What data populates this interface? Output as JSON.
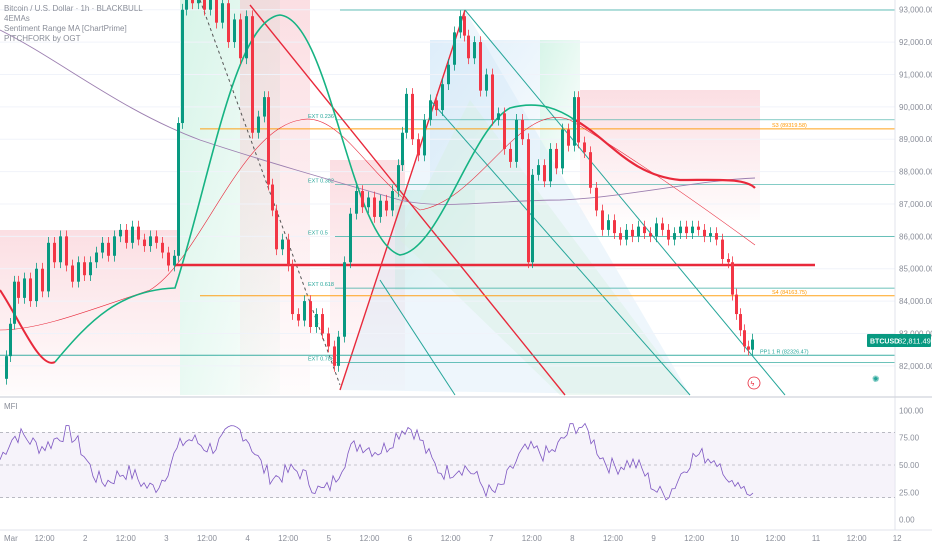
{
  "legend": {
    "line1": "Bitcoin / U.S. Dollar · 1h · BLACKBULL",
    "line2": "4EMAs",
    "line3": "Sentiment Range MA [ChartPrime]",
    "line4": "PITCHFORK by OGT"
  },
  "indicator_label": "MFI",
  "price_badge": {
    "symbol": "BTCUSD",
    "value": "82,811.49",
    "color": "#089981"
  },
  "colors": {
    "up": "#089981",
    "down": "#f23645",
    "orange": "#ff9800",
    "teal": "#26a69a",
    "red_line": "#e8293b",
    "purple": "#9c7fb0"
  },
  "chart_data": [
    {
      "type": "line",
      "chart_kind": "candlestick",
      "y_axis": {
        "ticks": [
          "93,000.00",
          "92,000.00",
          "91,000.00",
          "90,000.00",
          "89,000.00",
          "88,000.00",
          "87,000.00",
          "86,000.00",
          "85,000.00",
          "84,000.00",
          "83,000.00",
          "82,000.00"
        ],
        "values": [
          93000,
          92000,
          91000,
          90000,
          89000,
          88000,
          87000,
          86000,
          85000,
          84000,
          83000,
          82000
        ],
        "ylim": [
          81100,
          93300
        ]
      },
      "x_axis": {
        "ticks": [
          "Mar",
          "12:00",
          "2",
          "12:00",
          "3",
          "12:00",
          "4",
          "12:00",
          "5",
          "12:00",
          "6",
          "12:00",
          "7",
          "12:00",
          "8",
          "12:00",
          "9",
          "12:00",
          "10",
          "12:00",
          "11",
          "12:00",
          "12"
        ]
      },
      "levels": [
        {
          "label": "EXT 0.236",
          "value": 89600
        },
        {
          "label": "EXT 0.382",
          "value": 87600
        },
        {
          "label": "EXT 0.5",
          "value": 86000
        },
        {
          "label": "EXT 0.618",
          "value": 84400
        },
        {
          "label": "EXT 0.786",
          "value": 82100
        },
        {
          "label": "S3 (89319.58)",
          "value": 89320
        },
        {
          "label": "S4 (84163.75)",
          "value": 84164
        },
        {
          "label": "PP1 1 R (82326.47)",
          "value": 82326
        }
      ],
      "red_support": 85100,
      "last_price": 82811.49
    },
    {
      "type": "line",
      "chart_kind": "oscillator",
      "y_axis": {
        "ticks": [
          "100.00",
          "75.00",
          "50.00",
          "25.00",
          "0.00"
        ],
        "values": [
          100,
          75,
          50,
          25,
          0
        ],
        "ylim": [
          -5,
          105
        ]
      },
      "bands": [
        80,
        50,
        20
      ]
    }
  ]
}
